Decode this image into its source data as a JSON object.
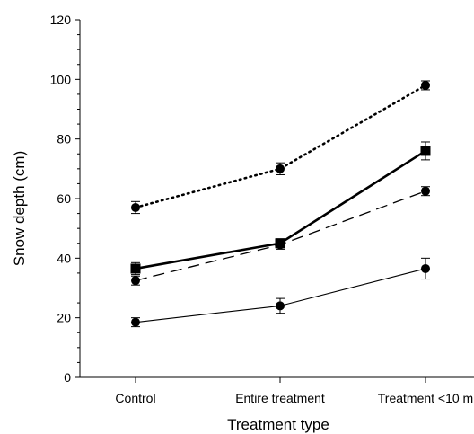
{
  "chart_data": {
    "type": "line",
    "xlabel": "Treatment type",
    "ylabel": "Snow depth (cm)",
    "categories": [
      "Control",
      "Entire treatment",
      "Treatment <10 m"
    ],
    "ylim": [
      0,
      120
    ],
    "yticks": [
      0,
      20,
      40,
      60,
      80,
      100,
      120
    ],
    "grid": false,
    "legend": "none",
    "series": [
      {
        "style": "dotted",
        "marker": "circle",
        "values": [
          57,
          70,
          98
        ],
        "errors": [
          2,
          2,
          1.5
        ]
      },
      {
        "style": "solid-thick",
        "marker": "square",
        "values": [
          36.5,
          45,
          76
        ],
        "errors": [
          2,
          1.5,
          3
        ]
      },
      {
        "style": "dashed",
        "marker": "circle",
        "values": [
          32.5,
          44.5,
          62.5
        ],
        "errors": [
          1.5,
          1.5,
          1.5
        ]
      },
      {
        "style": "solid-thin",
        "marker": "circle",
        "values": [
          18.5,
          24,
          36.5
        ],
        "errors": [
          1.5,
          2.5,
          3.5
        ]
      }
    ],
    "colors": {
      "ink": "#000000"
    }
  }
}
